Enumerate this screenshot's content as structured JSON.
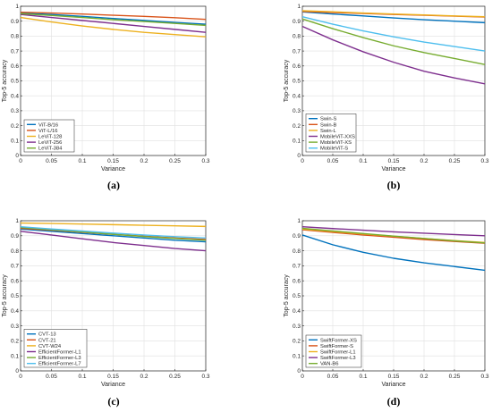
{
  "panels": [
    {
      "caption": "(a)",
      "chart_data": {
        "type": "line",
        "xlabel": "Variance",
        "ylabel": "Top-5 accuracy",
        "xlim": [
          0,
          0.3
        ],
        "ylim": [
          0,
          1
        ],
        "xticks": [
          "0",
          "0.05",
          "0.1",
          "0.15",
          "0.2",
          "0.25",
          "0.3"
        ],
        "yticks": [
          "0",
          "0.1",
          "0.2",
          "0.3",
          "0.4",
          "0.5",
          "0.6",
          "0.7",
          "0.8",
          "0.9",
          "1"
        ],
        "grid": true,
        "legend": "bottom-left",
        "x": [
          0,
          0.05,
          0.1,
          0.15,
          0.2,
          0.25,
          0.3
        ],
        "series": [
          {
            "name": "ViT-B/16",
            "color": "#0072BD",
            "values": [
              0.955,
              0.945,
              0.932,
              0.918,
              0.905,
              0.892,
              0.88
            ]
          },
          {
            "name": "ViT-L/16",
            "color": "#D95319",
            "values": [
              0.96,
              0.955,
              0.948,
              0.94,
              0.932,
              0.923,
              0.912
            ]
          },
          {
            "name": "LeViT-128",
            "color": "#EDB120",
            "values": [
              0.925,
              0.895,
              0.868,
              0.845,
              0.825,
              0.81,
              0.795
            ]
          },
          {
            "name": "LeViT-256",
            "color": "#7E2F8E",
            "values": [
              0.945,
              0.925,
              0.905,
              0.885,
              0.865,
              0.845,
              0.825
            ]
          },
          {
            "name": "LeViT-384",
            "color": "#77AC30",
            "values": [
              0.95,
              0.938,
              0.925,
              0.91,
              0.898,
              0.885,
              0.872
            ]
          }
        ]
      }
    },
    {
      "caption": "(b)",
      "chart_data": {
        "type": "line",
        "xlabel": "Variance",
        "ylabel": "Top-5 accuracy",
        "xlim": [
          0,
          0.3
        ],
        "ylim": [
          0,
          1
        ],
        "xticks": [
          "0",
          "0.05",
          "0.1",
          "0.15",
          "0.2",
          "0.25",
          "0.3"
        ],
        "yticks": [
          "0",
          "0.1",
          "0.2",
          "0.3",
          "0.4",
          "0.5",
          "0.6",
          "0.7",
          "0.8",
          "0.9",
          "1"
        ],
        "grid": true,
        "legend": "bottom-left",
        "x": [
          0,
          0.05,
          0.1,
          0.15,
          0.2,
          0.25,
          0.3
        ],
        "series": [
          {
            "name": "Swin-S",
            "color": "#0072BD",
            "values": [
              0.962,
              0.948,
              0.935,
              0.922,
              0.91,
              0.9,
              0.89
            ]
          },
          {
            "name": "Swin-B",
            "color": "#D95319",
            "values": [
              0.965,
              0.958,
              0.952,
              0.945,
              0.94,
              0.934,
              0.928
            ]
          },
          {
            "name": "Swin-L",
            "color": "#EDB120",
            "values": [
              0.97,
              0.963,
              0.955,
              0.948,
              0.942,
              0.935,
              0.93
            ]
          },
          {
            "name": "MobileViT-XXS",
            "color": "#7E2F8E",
            "values": [
              0.865,
              0.775,
              0.695,
              0.625,
              0.565,
              0.52,
              0.48
            ]
          },
          {
            "name": "MobileViT-XS",
            "color": "#77AC30",
            "values": [
              0.915,
              0.85,
              0.79,
              0.735,
              0.69,
              0.65,
              0.61
            ]
          },
          {
            "name": "MobileViT-S",
            "color": "#4DBEEE",
            "values": [
              0.93,
              0.88,
              0.835,
              0.795,
              0.76,
              0.73,
              0.7
            ]
          }
        ]
      }
    },
    {
      "caption": "(c)",
      "chart_data": {
        "type": "line",
        "xlabel": "Variance",
        "ylabel": "Top-5 accuracy",
        "xlim": [
          0,
          0.3
        ],
        "ylim": [
          0,
          1
        ],
        "xticks": [
          "0",
          "0.05",
          "0.1",
          "0.15",
          "0.2",
          "0.25",
          "0.3"
        ],
        "yticks": [
          "0",
          "0.1",
          "0.2",
          "0.3",
          "0.4",
          "0.5",
          "0.6",
          "0.7",
          "0.8",
          "0.9",
          "1"
        ],
        "grid": true,
        "legend": "bottom-left",
        "x": [
          0,
          0.05,
          0.1,
          0.15,
          0.2,
          0.25,
          0.3
        ],
        "series": [
          {
            "name": "CVT-13",
            "color": "#0072BD",
            "values": [
              0.945,
              0.93,
              0.915,
              0.9,
              0.885,
              0.87,
              0.86
            ]
          },
          {
            "name": "CVT-21",
            "color": "#D95319",
            "values": [
              0.95,
              0.937,
              0.923,
              0.91,
              0.897,
              0.885,
              0.875
            ]
          },
          {
            "name": "CVT-W24",
            "color": "#EDB120",
            "values": [
              0.985,
              0.982,
              0.978,
              0.974,
              0.97,
              0.966,
              0.962
            ]
          },
          {
            "name": "EfficientFormer-L1",
            "color": "#7E2F8E",
            "values": [
              0.93,
              0.905,
              0.88,
              0.855,
              0.835,
              0.815,
              0.8
            ]
          },
          {
            "name": "EfficientFormer-L3",
            "color": "#77AC30",
            "values": [
              0.955,
              0.94,
              0.925,
              0.91,
              0.895,
              0.882,
              0.87
            ]
          },
          {
            "name": "EfficientFormer-L7",
            "color": "#4DBEEE",
            "values": [
              0.96,
              0.945,
              0.932,
              0.918,
              0.905,
              0.894,
              0.885
            ]
          }
        ]
      }
    },
    {
      "caption": "(d)",
      "chart_data": {
        "type": "line",
        "xlabel": "Variance",
        "ylabel": "Top-5 accuracy",
        "xlim": [
          0,
          0.3
        ],
        "ylim": [
          0,
          1
        ],
        "xticks": [
          "0",
          "0.05",
          "0.1",
          "0.15",
          "0.2",
          "0.25",
          "0.3"
        ],
        "yticks": [
          "0",
          "0.1",
          "0.2",
          "0.3",
          "0.4",
          "0.5",
          "0.6",
          "0.7",
          "0.8",
          "0.9",
          "1"
        ],
        "grid": true,
        "legend": "bottom-left",
        "x": [
          0,
          0.05,
          0.1,
          0.15,
          0.2,
          0.25,
          0.3
        ],
        "series": [
          {
            "name": "SwiftFormer-XS",
            "color": "#0072BD",
            "values": [
              0.905,
              0.84,
              0.79,
              0.75,
              0.72,
              0.695,
              0.67
            ]
          },
          {
            "name": "SwiftFormer-S",
            "color": "#D95319",
            "values": [
              0.94,
              0.922,
              0.905,
              0.89,
              0.875,
              0.862,
              0.85
            ]
          },
          {
            "name": "SwiftFormer-L1",
            "color": "#EDB120",
            "values": [
              0.945,
              0.928,
              0.912,
              0.897,
              0.882,
              0.868,
              0.855
            ]
          },
          {
            "name": "SwiftFormer-L3",
            "color": "#7E2F8E",
            "values": [
              0.96,
              0.948,
              0.937,
              0.926,
              0.917,
              0.908,
              0.9
            ]
          },
          {
            "name": "VAN-B6",
            "color": "#77AC30",
            "values": [
              0.95,
              0.932,
              0.915,
              0.898,
              0.882,
              0.866,
              0.852
            ]
          }
        ]
      }
    }
  ]
}
